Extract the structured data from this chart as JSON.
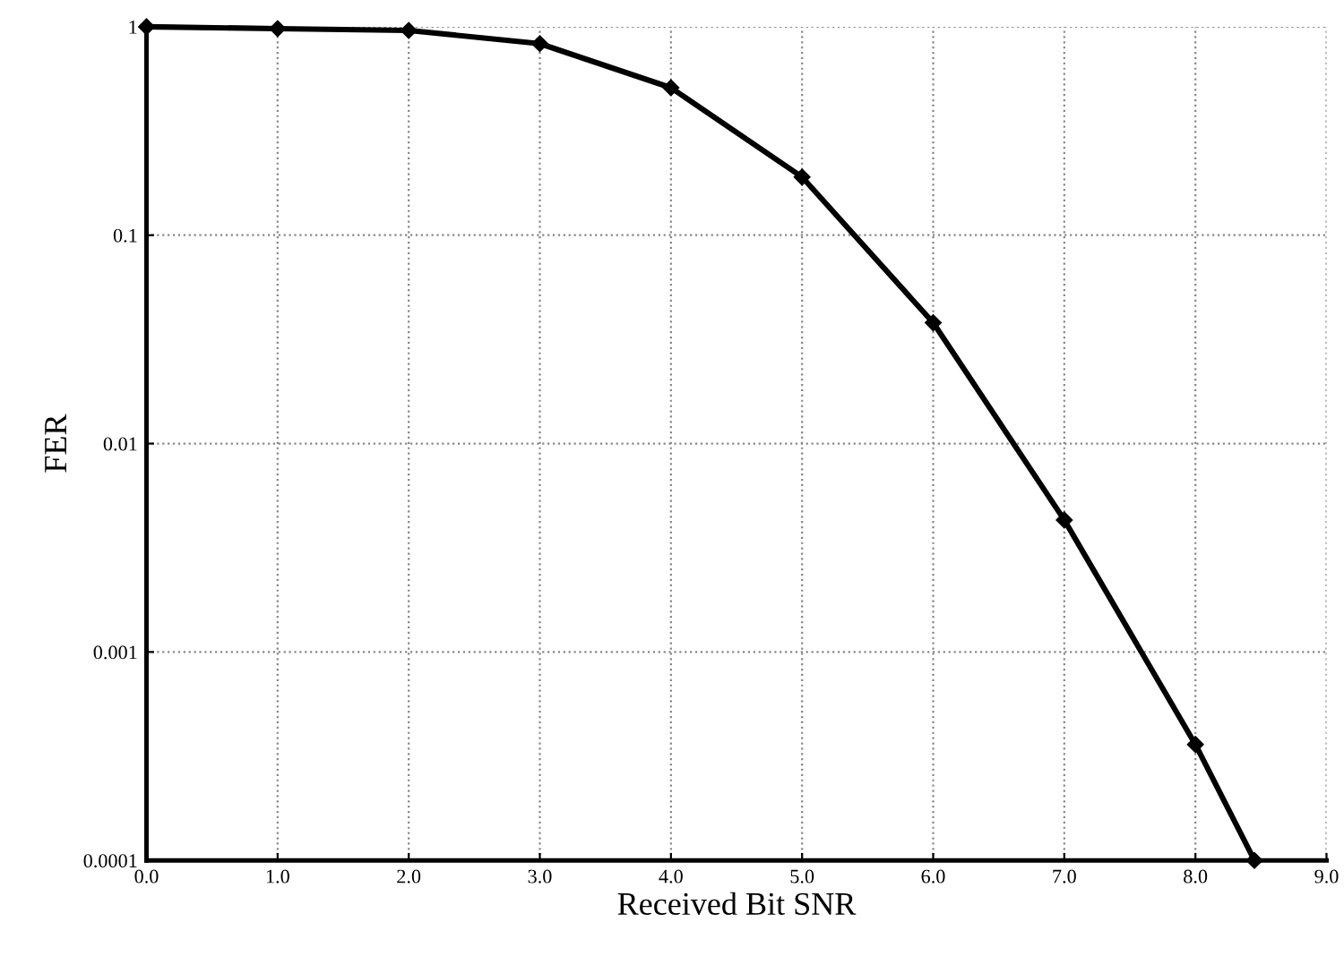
{
  "chart_data": {
    "type": "line",
    "xlabel": "Received Bit SNR",
    "ylabel": "FER",
    "x": [
      0.0,
      1.0,
      2.0,
      3.0,
      4.0,
      5.0,
      6.0,
      7.0,
      8.0,
      8.45
    ],
    "series": [
      {
        "color": "#000000",
        "values": [
          1.0,
          0.98,
          0.96,
          0.83,
          0.51,
          0.19,
          0.038,
          0.0043,
          0.00036,
          0.0001
        ]
      }
    ],
    "log": "y",
    "xlim": [
      0,
      9
    ],
    "ylim": [
      0.0001,
      1
    ],
    "xticks": [
      {
        "value": 0,
        "label": "0.0"
      },
      {
        "value": 1,
        "label": "1.0"
      },
      {
        "value": 2,
        "label": "2.0"
      },
      {
        "value": 3,
        "label": "3.0"
      },
      {
        "value": 4,
        "label": "4.0"
      },
      {
        "value": 5,
        "label": "5.0"
      },
      {
        "value": 6,
        "label": "6.0"
      },
      {
        "value": 7,
        "label": "7.0"
      },
      {
        "value": 8,
        "label": "8.0"
      },
      {
        "value": 9,
        "label": "9.0"
      }
    ],
    "yticks": [
      {
        "value": 0.0001,
        "label": "0.0001"
      },
      {
        "value": 0.001,
        "label": "0.001"
      },
      {
        "value": 0.01,
        "label": "0.01"
      },
      {
        "value": 0.1,
        "label": "0.1"
      },
      1
    ],
    "grid": true,
    "marker": "diamond",
    "line_style": "solid"
  }
}
